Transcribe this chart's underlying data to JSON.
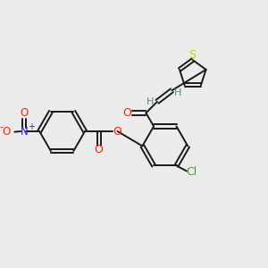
{
  "bg_color": "#ebebeb",
  "bond_color": "#1a1a1a",
  "O_color": "#ff2200",
  "N_color": "#2222ff",
  "S_color": "#cccc00",
  "Cl_color": "#33aa33",
  "H_color": "#558888",
  "figsize": [
    3.0,
    3.0
  ],
  "dpi": 100,
  "xlim": [
    0,
    10
  ],
  "ylim": [
    0,
    10
  ]
}
